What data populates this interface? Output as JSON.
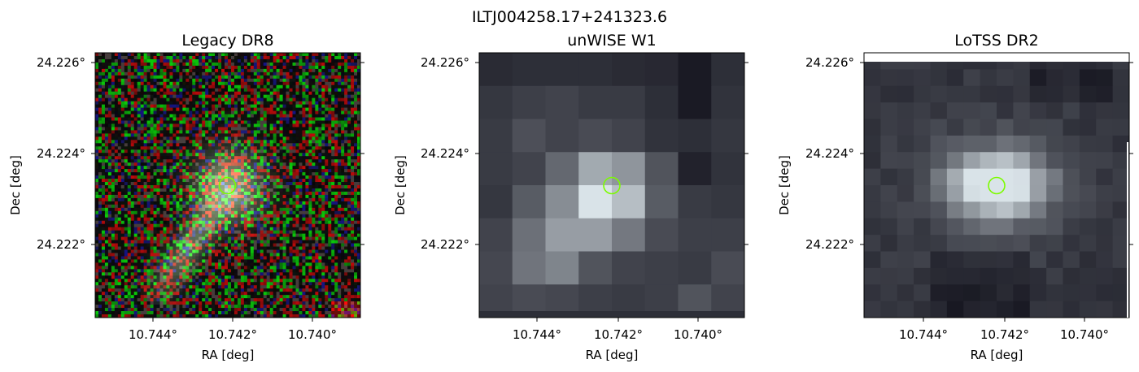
{
  "figure": {
    "suptitle": "ILTJ004258.17+241323.6",
    "panels": [
      {
        "title": "Legacy DR8",
        "xlabel": "RA [deg]",
        "ylabel": "Dec [deg]",
        "xticks": [
          "10.744°",
          "10.742°",
          "10.740°"
        ],
        "yticks": [
          "24.226°",
          "24.224°",
          "24.222°"
        ],
        "image_kind": "rgb-noise-galaxy"
      },
      {
        "title": "unWISE W1",
        "xlabel": "RA [deg]",
        "ylabel": "Dec [deg]",
        "xticks": [
          "10.744°",
          "10.742°",
          "10.740°"
        ],
        "yticks": [
          "24.226°",
          "24.224°",
          "24.222°"
        ],
        "image_kind": "grayscale-pixelated"
      },
      {
        "title": "LoTSS DR2",
        "xlabel": "RA [deg]",
        "ylabel": "Dec [deg]",
        "xticks": [
          "10.744°",
          "10.742°",
          "10.740°"
        ],
        "yticks": [
          "24.226°",
          "24.224°",
          "24.222°"
        ],
        "image_kind": "grayscale-pixelated"
      }
    ],
    "marker_color": "#7CFC00"
  }
}
